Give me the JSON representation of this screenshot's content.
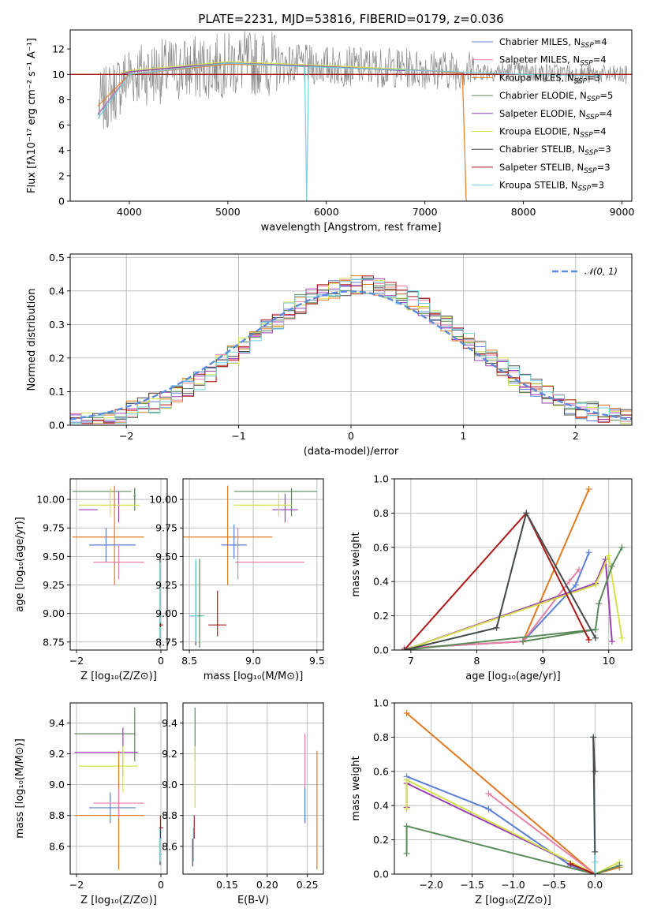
{
  "page": {
    "title": "PLATE=2231, MJD=53816, FIBERID=0179, z=0.036"
  },
  "chart_data": [
    {
      "id": "spectrum",
      "type": "line",
      "title": "PLATE=2231, MJD=53816, FIBERID=0179, z=0.036",
      "xlabel": "wavelength [Angstrom, rest frame]",
      "ylabel": "Flux [fλ10⁻¹⁷ erg cm⁻² s⁻¹ A⁻¹]",
      "xlim": [
        3400,
        9100
      ],
      "ylim": [
        0,
        13.5
      ],
      "xticks": [
        4000,
        5000,
        6000,
        7000,
        8000,
        9000
      ],
      "yticks": [
        0,
        2,
        4,
        6,
        8,
        10,
        12
      ],
      "grid": false,
      "legend": "top-right",
      "series": [
        {
          "name": "Chabrier MILES, N",
          "sub": "SSP",
          "suffix": "=4",
          "color": "#5b7fd6",
          "x": [
            3680,
            4000,
            5000,
            6000,
            7000,
            7400
          ],
          "y": [
            6.8,
            10.0,
            10.9,
            10.6,
            10.3,
            10.1
          ]
        },
        {
          "name": "Salpeter MILES, N",
          "sub": "SSP",
          "suffix": "=4",
          "color": "#e87fa4",
          "x": [
            3680,
            4000,
            5000,
            6000,
            7000,
            7400
          ],
          "y": [
            6.9,
            10.0,
            10.9,
            10.6,
            10.3,
            10.1
          ]
        },
        {
          "name": "Kroupa MILES, N",
          "sub": "SSP",
          "suffix": "=3",
          "color": "#e07a22",
          "x": [
            3680,
            4000,
            5000,
            6000,
            7000,
            7380,
            7420
          ],
          "y": [
            7.5,
            10.0,
            10.8,
            10.6,
            10.3,
            10.1,
            0.0
          ]
        },
        {
          "name": "Chabrier ELODIE, N",
          "sub": "SSP",
          "suffix": "=5",
          "color": "#5a8a5a",
          "x": [
            3920,
            4000,
            5000,
            6000,
            6800
          ],
          "y": [
            10.0,
            10.2,
            10.9,
            10.6,
            10.3
          ]
        },
        {
          "name": "Salpeter ELODIE, N",
          "sub": "SSP",
          "suffix": "=4",
          "color": "#9a3fb5",
          "x": [
            3920,
            4000,
            5000,
            6000,
            6800
          ],
          "y": [
            10.0,
            10.2,
            10.9,
            10.6,
            10.3
          ]
        },
        {
          "name": "Kroupa ELODIE, N",
          "sub": "SSP",
          "suffix": "=4",
          "color": "#d4e04a",
          "x": [
            3920,
            4000,
            5000,
            6000,
            6800
          ],
          "y": [
            10.1,
            10.3,
            11.0,
            10.7,
            10.4
          ]
        },
        {
          "name": "Chabrier STELIB, N",
          "sub": "SSP",
          "suffix": "=3",
          "color": "#4a4a4a",
          "x": [
            3400,
            9100
          ],
          "y": [
            10.0,
            10.0
          ]
        },
        {
          "name": "Salpeter STELIB, N",
          "sub": "SSP",
          "suffix": "=3",
          "color": "#b01818",
          "x": [
            3400,
            9100
          ],
          "y": [
            10.0,
            10.0
          ]
        },
        {
          "name": "Kroupa STELIB, N",
          "sub": "SSP",
          "suffix": "=3",
          "color": "#6fcfdc",
          "x": [
            3680,
            4000,
            5000,
            5780,
            5800,
            5820,
            7000,
            8000,
            8800
          ],
          "y": [
            6.5,
            10.0,
            10.9,
            10.6,
            0.0,
            10.6,
            10.3,
            10.0,
            9.9
          ]
        }
      ],
      "data_trace": {
        "name": "data",
        "color": "#888888"
      }
    },
    {
      "id": "residuals",
      "type": "line",
      "xlabel": "(data-model)/error",
      "ylabel": "Normed distribution",
      "xlim": [
        -2.5,
        2.5
      ],
      "ylim": [
        0,
        0.51
      ],
      "xticks": [
        -2,
        -1,
        0,
        1,
        2
      ],
      "yticks": [
        0.0,
        0.1,
        0.2,
        0.3,
        0.4,
        0.5
      ],
      "grid": true,
      "legend": "top-right",
      "gaussian": {
        "label": "𝒩(0, 1)",
        "mu": 0,
        "sigma": 1,
        "color": "#5b8bd9"
      },
      "bin_edges_step": 0.1
    },
    {
      "id": "z-age",
      "type": "scatter",
      "xlabel": "Z [log₁₀(Z/Z⊙)]",
      "ylabel": "age  [log₁₀(age/yr)]",
      "xlim": [
        -2.15,
        0.15
      ],
      "ylim": [
        8.68,
        10.18
      ],
      "xticks": [
        -2,
        0
      ],
      "yticks": [
        8.75,
        9.0,
        9.25,
        9.5,
        9.75,
        10.0
      ],
      "grid": true,
      "crosses": [
        {
          "color": "#5a8a5a",
          "x": -0.62,
          "x0": -2.1,
          "x1": -0.7,
          "y": 10.07,
          "y0": 10.0,
          "y1": 10.1
        },
        {
          "color": "#5a8a5a",
          "x": -0.62,
          "x0": -0.65,
          "x1": -0.6,
          "y": 10.03,
          "y0": 9.9,
          "y1": 10.1
        },
        {
          "color": "#9a3fb5",
          "x": -1.0,
          "x0": -1.95,
          "x1": -1.5,
          "y": 9.91,
          "y0": 9.8,
          "y1": 10.07
        },
        {
          "color": "#d4e04a",
          "x": -1.2,
          "x0": -1.95,
          "x1": -0.5,
          "y": 9.95,
          "y0": 9.85,
          "y1": 10.1
        },
        {
          "color": "#e07a22",
          "x": -1.1,
          "x0": -2.1,
          "x1": -0.4,
          "y": 9.67,
          "y0": 9.25,
          "y1": 10.12
        },
        {
          "color": "#5b7fd6",
          "x": -1.3,
          "x0": -1.7,
          "x1": -0.6,
          "y": 9.6,
          "y0": 9.45,
          "y1": 9.75
        },
        {
          "color": "#e87fa4",
          "x": -1.0,
          "x0": -1.6,
          "x1": -0.4,
          "y": 9.45,
          "y0": 9.3,
          "y1": 9.6
        },
        {
          "color": "#4a4a4a",
          "x": -0.02,
          "x0": -0.05,
          "x1": 0.02,
          "y": 8.98,
          "y0": 8.7,
          "y1": 9.48
        },
        {
          "color": "#6fcfdc",
          "x": -0.02,
          "x0": -0.05,
          "x1": 0.02,
          "y": 8.98,
          "y0": 8.72,
          "y1": 9.45
        },
        {
          "color": "#b01818",
          "x": -0.01,
          "x0": -0.04,
          "x1": 0.05,
          "y": 8.9,
          "y0": 8.88,
          "y1": 8.92
        }
      ]
    },
    {
      "id": "mass-age",
      "type": "scatter",
      "xlabel": "mass [log₁₀(M/M⊙)]",
      "ylabel": "",
      "xlim": [
        8.45,
        9.55
      ],
      "ylim": [
        8.68,
        10.18
      ],
      "xticks": [
        8.5,
        9.0,
        9.5
      ],
      "yticks": [
        8.75,
        9.0,
        9.25,
        9.5,
        9.75,
        10.0
      ],
      "grid": true,
      "crosses": [
        {
          "color": "#5a8a5a",
          "x": 9.3,
          "x0": 8.85,
          "x1": 9.5,
          "y": 10.07,
          "y0": 9.85,
          "y1": 10.1
        },
        {
          "color": "#9a3fb5",
          "x": 9.25,
          "x0": 9.15,
          "x1": 9.35,
          "y": 9.91,
          "y0": 9.8,
          "y1": 10.05
        },
        {
          "color": "#d4e04a",
          "x": 9.2,
          "x0": 8.85,
          "x1": 9.3,
          "y": 9.95,
          "y0": 9.85,
          "y1": 10.05
        },
        {
          "color": "#e07a22",
          "x": 8.8,
          "x0": 8.45,
          "x1": 9.15,
          "y": 9.67,
          "y0": 9.25,
          "y1": 10.12
        },
        {
          "color": "#5b7fd6",
          "x": 8.85,
          "x0": 8.75,
          "x1": 8.95,
          "y": 9.6,
          "y0": 9.48,
          "y1": 9.78
        },
        {
          "color": "#e87fa4",
          "x": 8.88,
          "x0": 8.86,
          "x1": 9.4,
          "y": 9.45,
          "y0": 9.3,
          "y1": 9.75
        },
        {
          "color": "#4a4a4a",
          "x": 8.55,
          "x0": 8.5,
          "x1": 8.6,
          "y": 8.98,
          "y0": 8.72,
          "y1": 9.45
        },
        {
          "color": "#6fcfdc",
          "x": 8.55,
          "x0": 8.5,
          "x1": 8.62,
          "y": 8.98,
          "y0": 8.75,
          "y1": 9.48
        },
        {
          "color": "#5a8a5a",
          "x": 8.58,
          "x0": 8.57,
          "x1": 8.59,
          "y": 8.98,
          "y0": 8.7,
          "y1": 9.48
        },
        {
          "color": "#b01818",
          "x": 8.72,
          "x0": 8.65,
          "x1": 8.79,
          "y": 8.9,
          "y0": 8.8,
          "y1": 9.2
        }
      ]
    },
    {
      "id": "age-weight",
      "type": "line",
      "xlabel": "age  [log₁₀(age/yr)]",
      "ylabel": "mass weight",
      "xlim": [
        6.75,
        10.35
      ],
      "ylim": [
        0,
        1.0
      ],
      "xticks": [
        7,
        8,
        9,
        10
      ],
      "yticks": [
        0.0,
        0.2,
        0.4,
        0.6,
        0.8,
        1.0
      ],
      "grid": true,
      "series": [
        {
          "color": "#e07a22",
          "x": [
            6.9,
            8.7,
            9.7
          ],
          "y": [
            0.01,
            0.05,
            0.94
          ]
        },
        {
          "color": "#5b7fd6",
          "x": [
            6.9,
            8.7,
            9.5,
            9.7
          ],
          "y": [
            0.01,
            0.05,
            0.38,
            0.57
          ]
        },
        {
          "color": "#e87fa4",
          "x": [
            6.9,
            8.7,
            9.4,
            9.55
          ],
          "y": [
            0.01,
            0.05,
            0.4,
            0.47
          ]
        },
        {
          "color": "#9a3fb5",
          "x": [
            6.9,
            9.8,
            9.95,
            10.05
          ],
          "y": [
            0.0,
            0.39,
            0.53,
            0.05
          ]
        },
        {
          "color": "#d4e04a",
          "x": [
            6.9,
            9.8,
            10.0,
            10.2
          ],
          "y": [
            0.0,
            0.38,
            0.55,
            0.07
          ]
        },
        {
          "color": "#5a8a5a",
          "x": [
            6.9,
            9.8,
            9.85,
            10.05,
            10.2
          ],
          "y": [
            0.0,
            0.12,
            0.27,
            0.49,
            0.6
          ]
        },
        {
          "color": "#5a8a5a",
          "x": [
            8.7,
            9.8
          ],
          "y": [
            0.05,
            0.12
          ]
        },
        {
          "color": "#b01818",
          "x": [
            6.9,
            8.75,
            9.7
          ],
          "y": [
            0.0,
            0.8,
            0.06
          ]
        },
        {
          "color": "#6fcfdc",
          "x": [
            6.9,
            8.3,
            8.75,
            9.8
          ],
          "y": [
            0.0,
            0.13,
            0.8,
            0.07
          ]
        },
        {
          "color": "#4a4a4a",
          "x": [
            6.9,
            8.3,
            8.75,
            9.8
          ],
          "y": [
            0.0,
            0.13,
            0.8,
            0.07
          ]
        }
      ]
    },
    {
      "id": "z-mass",
      "type": "scatter",
      "xlabel": "Z [log₁₀(Z/Z⊙)]",
      "ylabel": "mass [log₁₀(M/M⊙)]",
      "xlim": [
        -2.15,
        0.15
      ],
      "ylim": [
        8.42,
        9.53
      ],
      "xticks": [
        -2,
        0
      ],
      "yticks": [
        8.6,
        8.8,
        9.0,
        9.2,
        9.4
      ],
      "grid": true,
      "crosses": [
        {
          "color": "#5a8a5a",
          "x": -0.62,
          "x0": -2.05,
          "x1": -0.6,
          "y": 9.33,
          "y0": 9.15,
          "y1": 9.5
        },
        {
          "color": "#9a3fb5",
          "x": -0.9,
          "x0": -2.05,
          "x1": -0.55,
          "y": 9.21,
          "y0": 9.05,
          "y1": 9.37
        },
        {
          "color": "#d4e04a",
          "x": -0.9,
          "x0": -1.95,
          "x1": -0.55,
          "y": 9.12,
          "y0": 8.95,
          "y1": 9.25
        },
        {
          "color": "#e07a22",
          "x": -1.0,
          "x0": -2.05,
          "x1": -0.4,
          "y": 8.8,
          "y0": 8.45,
          "y1": 9.22
        },
        {
          "color": "#5b7fd6",
          "x": -1.2,
          "x0": -1.7,
          "x1": -0.6,
          "y": 8.85,
          "y0": 8.75,
          "y1": 8.95
        },
        {
          "color": "#e87fa4",
          "x": -1.0,
          "x0": -1.6,
          "x1": -0.4,
          "y": 8.88,
          "y0": 8.78,
          "y1": 8.98
        },
        {
          "color": "#4a4a4a",
          "x": -0.02,
          "x0": -0.05,
          "x1": 0.02,
          "y": 8.55,
          "y0": 8.48,
          "y1": 8.65
        },
        {
          "color": "#6fcfdc",
          "x": -0.02,
          "x0": -0.05,
          "x1": 0.02,
          "y": 8.55,
          "y0": 8.5,
          "y1": 8.72
        },
        {
          "color": "#b01818",
          "x": -0.01,
          "x0": -0.04,
          "x1": 0.05,
          "y": 8.72,
          "y0": 8.65,
          "y1": 8.8
        }
      ]
    },
    {
      "id": "ebv-mass",
      "type": "scatter",
      "xlabel": "E(B-V)",
      "ylabel": "",
      "xlim": [
        0.095,
        0.27
      ],
      "ylim": [
        8.42,
        9.53
      ],
      "xticks": [
        0.15,
        0.2,
        0.25
      ],
      "yticks": [
        8.6,
        8.8,
        9.0,
        9.2,
        9.4
      ],
      "grid": true,
      "crosses": [
        {
          "color": "#5a8a5a",
          "x": 0.11,
          "x0": 0.11,
          "x1": 0.11,
          "y": 9.33,
          "y0": 9.15,
          "y1": 9.5
        },
        {
          "color": "#d4e04a",
          "x": 0.11,
          "x0": 0.11,
          "x1": 0.11,
          "y": 9.1,
          "y0": 8.85,
          "y1": 9.25
        },
        {
          "color": "#e87fa4",
          "x": 0.247,
          "x0": 0.247,
          "x1": 0.247,
          "y": 9.0,
          "y0": 8.75,
          "y1": 9.33
        },
        {
          "color": "#e07a22",
          "x": 0.262,
          "x0": 0.262,
          "x1": 0.262,
          "y": 8.8,
          "y0": 8.45,
          "y1": 9.22
        },
        {
          "color": "#5b7fd6",
          "x": 0.247,
          "x0": 0.247,
          "x1": 0.247,
          "y": 8.85,
          "y0": 8.75,
          "y1": 8.98
        },
        {
          "color": "#6fcfdc",
          "x": 0.108,
          "x0": 0.108,
          "x1": 0.108,
          "y": 8.6,
          "y0": 8.5,
          "y1": 8.72
        },
        {
          "color": "#4a4a4a",
          "x": 0.107,
          "x0": 0.107,
          "x1": 0.107,
          "y": 8.55,
          "y0": 8.47,
          "y1": 8.65
        },
        {
          "color": "#b01818",
          "x": 0.109,
          "x0": 0.109,
          "x1": 0.109,
          "y": 8.73,
          "y0": 8.65,
          "y1": 8.8
        }
      ]
    },
    {
      "id": "z-weight",
      "type": "line",
      "xlabel": "Z [log₁₀(Z/Z⊙)]",
      "ylabel": "mass weight",
      "xlim": [
        -2.45,
        0.45
      ],
      "ylim": [
        0,
        1.0
      ],
      "xticks": [
        -2.0,
        -1.5,
        -1.0,
        -0.5,
        0.0
      ],
      "yticks": [
        0.0,
        0.2,
        0.4,
        0.6,
        0.8,
        1.0
      ],
      "grid": true,
      "series": [
        {
          "color": "#e07a22",
          "x": [
            -2.3,
            0.0,
            0.3
          ],
          "y": [
            0.94,
            0.0,
            0.04
          ]
        },
        {
          "color": "#5b7fd6",
          "x": [
            -2.3,
            -1.3,
            -0.3,
            0.0
          ],
          "y": [
            0.57,
            0.38,
            0.05,
            0.0
          ]
        },
        {
          "color": "#e87fa4",
          "x": [
            -1.3,
            0.0,
            0.3
          ],
          "y": [
            0.47,
            0.0,
            0.05
          ]
        },
        {
          "color": "#9a3fb5",
          "x": [
            -2.3,
            -2.3,
            0.0,
            0.3
          ],
          "y": [
            0.39,
            0.53,
            0.0,
            0.05
          ]
        },
        {
          "color": "#d4e04a",
          "x": [
            -2.3,
            -2.3,
            0.0,
            0.3
          ],
          "y": [
            0.38,
            0.55,
            0.0,
            0.07
          ]
        },
        {
          "color": "#5a8a5a",
          "x": [
            -2.3,
            -2.3,
            0.0,
            0.3
          ],
          "y": [
            0.12,
            0.28,
            0.0,
            0.05
          ]
        },
        {
          "color": "#b01818",
          "x": [
            -0.3,
            0.0
          ],
          "y": [
            0.06,
            0.0
          ]
        },
        {
          "color": "#6fcfdc",
          "x": [
            0.0,
            -0.02,
            0.0
          ],
          "y": [
            0.0,
            0.8,
            0.07
          ]
        },
        {
          "color": "#4a4a4a",
          "x": [
            0.0,
            -0.02,
            0.0
          ],
          "y": [
            0.13,
            0.8,
            0.6
          ]
        }
      ]
    }
  ]
}
